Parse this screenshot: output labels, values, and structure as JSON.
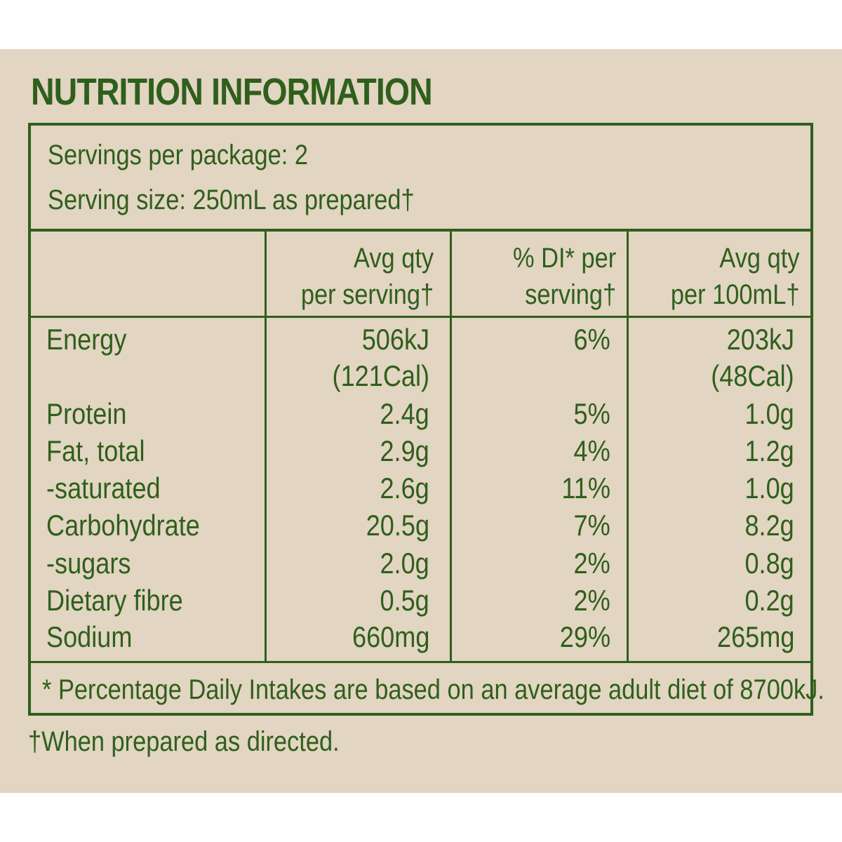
{
  "title": "NUTRITION INFORMATION",
  "servings_per_package": "Servings per package: 2",
  "serving_size": "Serving size: 250mL as prepared†",
  "headers": {
    "per_serving_1": "Avg qty",
    "per_serving_2": "per serving†",
    "di_1": "% DI* per",
    "di_2": "serving†",
    "per_100_1": "Avg qty",
    "per_100_2": "per 100mL†"
  },
  "rows": [
    {
      "name": "Energy",
      "per_serving": "506kJ",
      "per_serving_extra": "(121Cal)",
      "di": "6%",
      "per_100": "203kJ",
      "per_100_extra": "(48Cal)"
    },
    {
      "name": "Protein",
      "per_serving": "2.4g",
      "di": "5%",
      "per_100": "1.0g"
    },
    {
      "name": "Fat, total",
      "per_serving": "2.9g",
      "di": "4%",
      "per_100": "1.2g"
    },
    {
      "name": "-saturated",
      "per_serving": "2.6g",
      "di": "11%",
      "per_100": "1.0g"
    },
    {
      "name": "Carbohydrate",
      "per_serving": "20.5g",
      "di": "7%",
      "per_100": "8.2g"
    },
    {
      "name": "-sugars",
      "per_serving": "2.0g",
      "di": "2%",
      "per_100": "0.8g"
    },
    {
      "name": "Dietary fibre",
      "per_serving": "0.5g",
      "di": "2%",
      "per_100": "0.2g"
    },
    {
      "name": "Sodium",
      "per_serving": "660mg",
      "di": "29%",
      "per_100": "265mg"
    }
  ],
  "footnote": "* Percentage Daily Intakes are based on an average adult diet of 8700kJ.",
  "note": "†When prepared as directed.",
  "colors": {
    "background": "#e2d5c1",
    "text": "#2f5f1c"
  }
}
